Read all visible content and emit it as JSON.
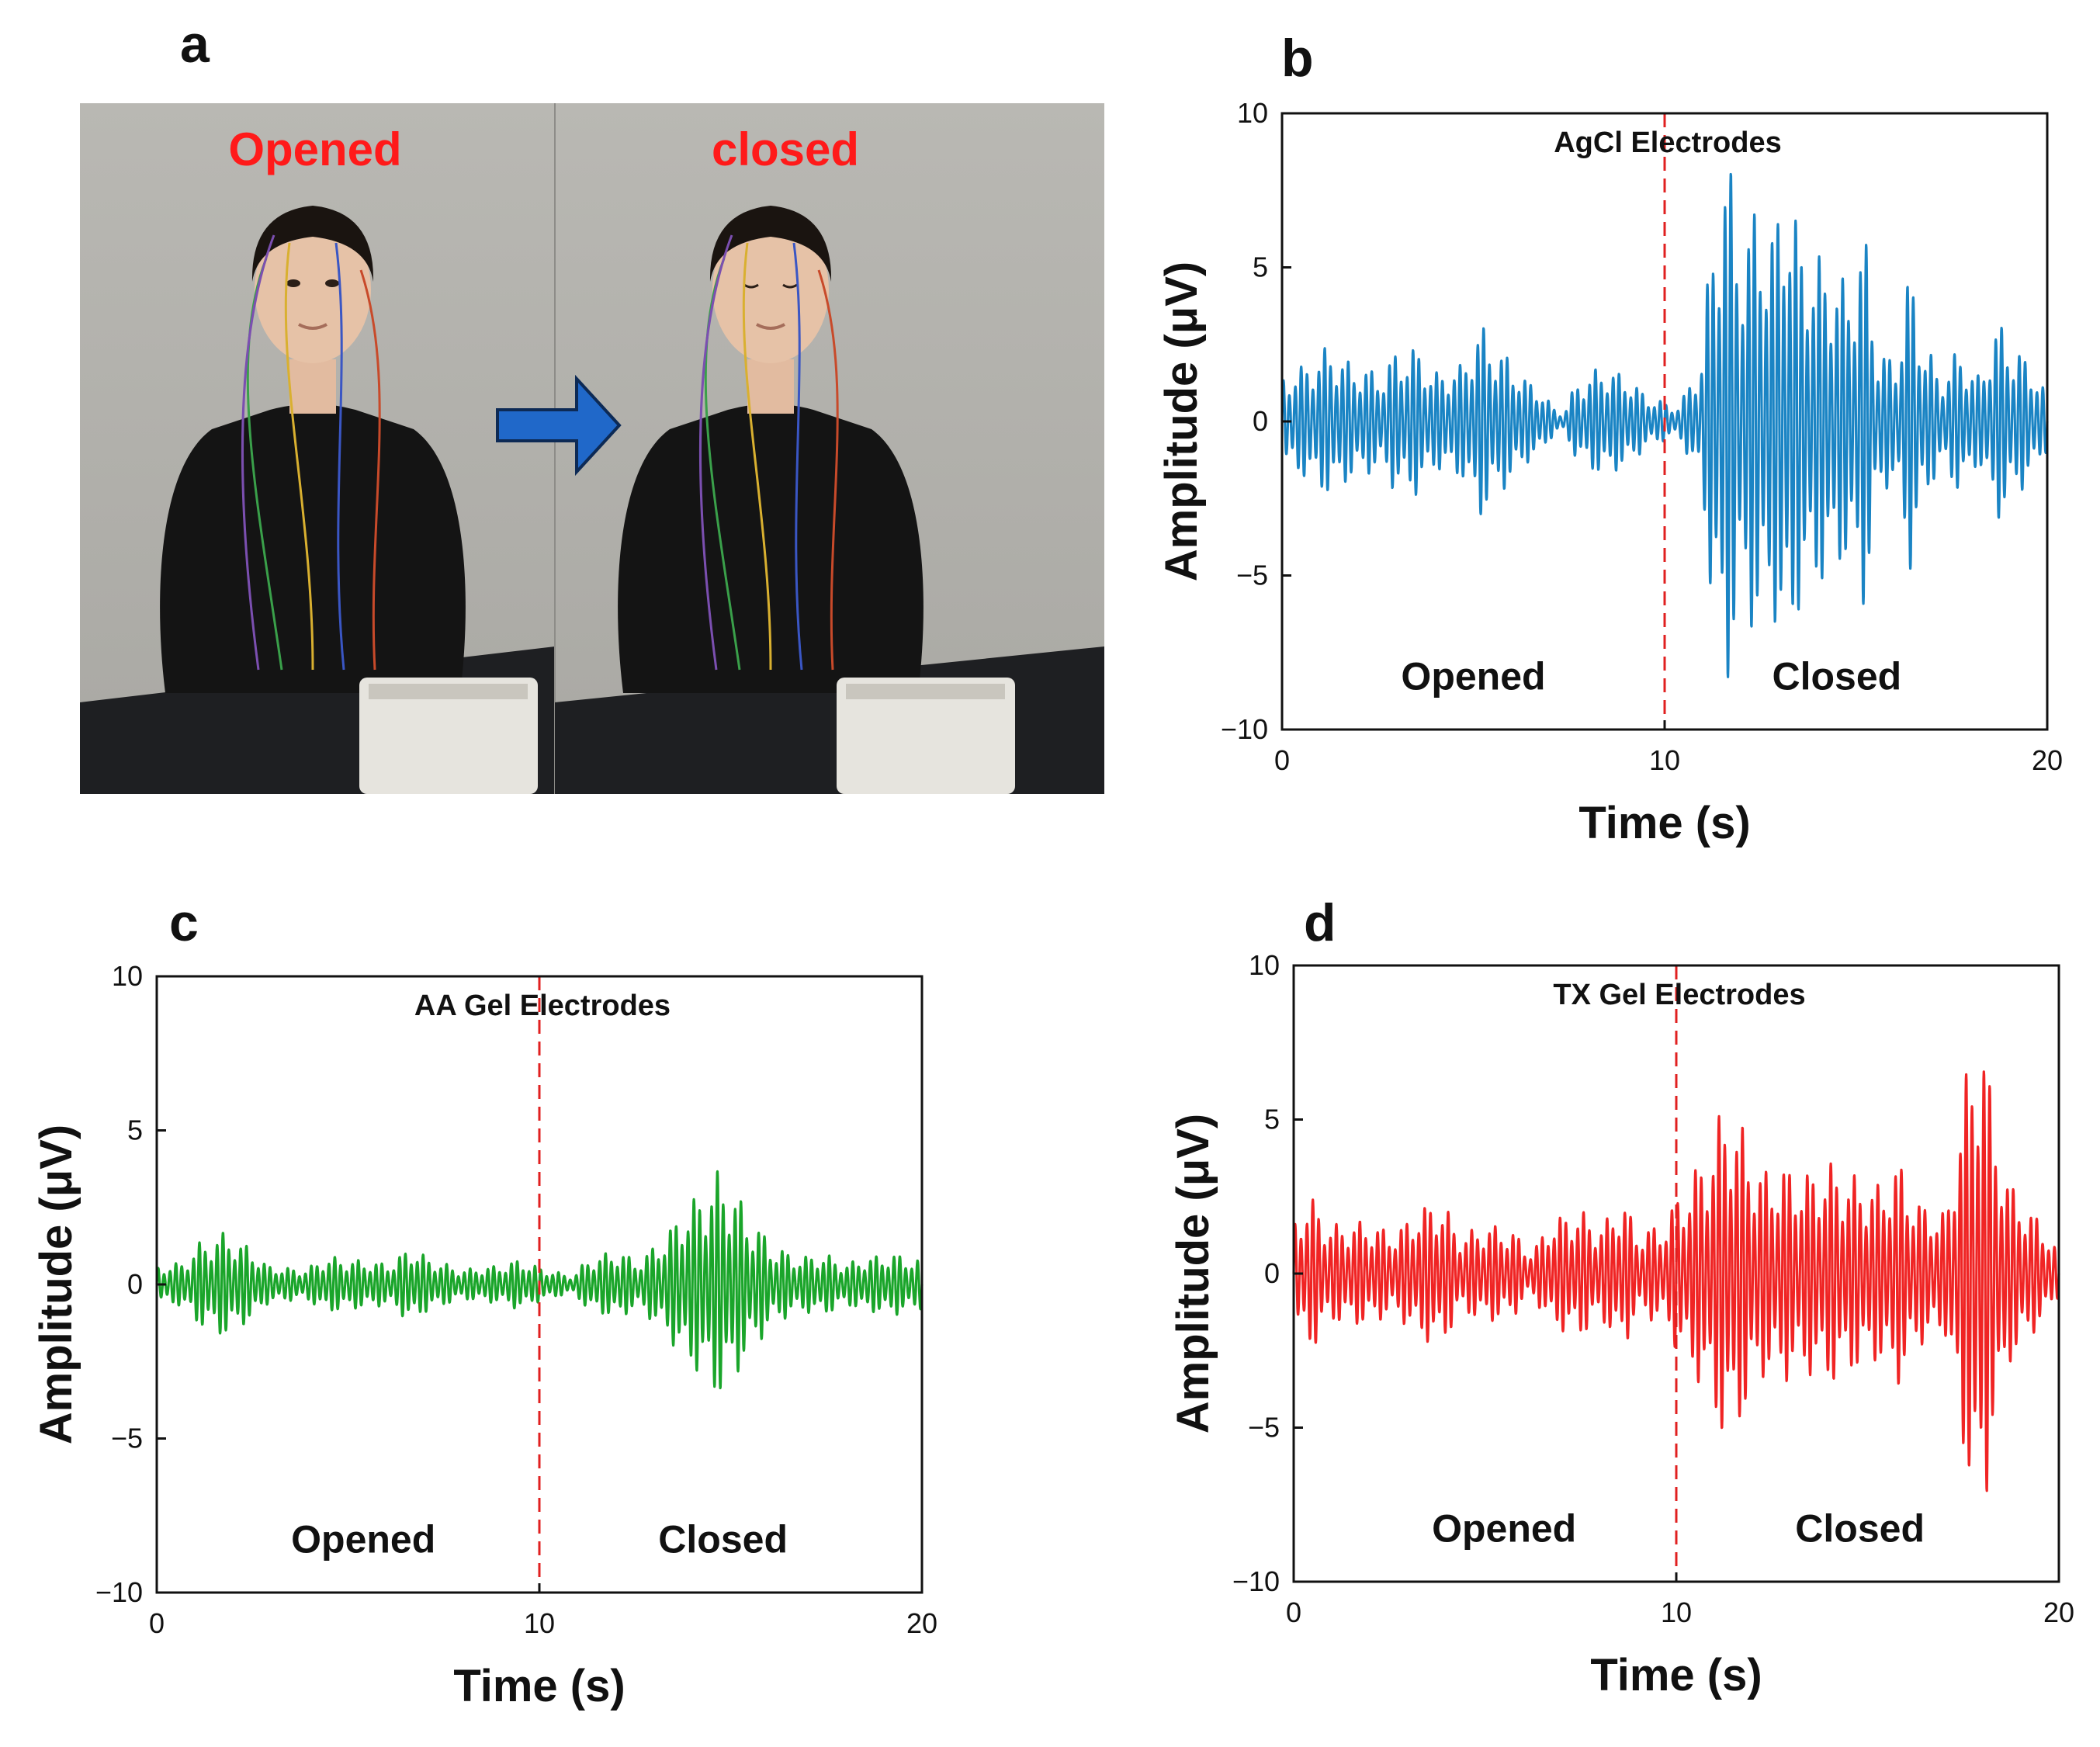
{
  "panels": {
    "a": {
      "letter": "a",
      "labels": {
        "left": "Opened",
        "right": "closed"
      }
    },
    "b": {
      "letter": "b"
    },
    "c": {
      "letter": "c"
    },
    "d": {
      "letter": "d"
    }
  },
  "chart_data": [
    {
      "id": "b",
      "type": "line",
      "title": "AgCl Electrodes",
      "xlabel": "Time (s)",
      "ylabel": "Amplitude (μV)",
      "xlim": [
        0,
        20
      ],
      "ylim": [
        -10,
        10
      ],
      "xticks": [
        0,
        10,
        20
      ],
      "yticks": [
        10,
        5,
        0,
        -5,
        -10
      ],
      "ytick_labels": [
        "10",
        "5",
        "0",
        "−5",
        "−10"
      ],
      "grid": false,
      "divider_x": 10,
      "regions": [
        {
          "label": "Opened",
          "x": 5
        },
        {
          "label": "Closed",
          "x": 14.5
        }
      ],
      "series": [
        {
          "color": "#1a84c4",
          "oscillation_hz": 6.5,
          "envelope": [
            [
              0,
              1.5
            ],
            [
              0.5,
              1.8
            ],
            [
              1.2,
              2.4
            ],
            [
              2,
              1.8
            ],
            [
              2.6,
              1.6
            ],
            [
              3,
              2.3
            ],
            [
              3.5,
              2.4
            ],
            [
              4,
              1.6
            ],
            [
              4.6,
              1.8
            ],
            [
              5.2,
              3.1
            ],
            [
              5.8,
              2.2
            ],
            [
              6.5,
              1.3
            ],
            [
              7.3,
              0.3
            ],
            [
              7.8,
              1.4
            ],
            [
              8.4,
              1.8
            ],
            [
              9,
              1.5
            ],
            [
              9.6,
              0.8
            ],
            [
              10.3,
              0.5
            ],
            [
              10.9,
              1.8
            ],
            [
              11.3,
              6.5
            ],
            [
              11.6,
              8.8
            ],
            [
              12,
              6.0
            ],
            [
              12.4,
              7.0
            ],
            [
              12.8,
              6.3
            ],
            [
              13.2,
              8.1
            ],
            [
              13.6,
              5.8
            ],
            [
              14,
              5.4
            ],
            [
              14.4,
              5.0
            ],
            [
              14.8,
              4.5
            ],
            [
              15.2,
              6.1
            ],
            [
              15.6,
              2.4
            ],
            [
              16,
              2.0
            ],
            [
              16.4,
              4.8
            ],
            [
              16.8,
              2.6
            ],
            [
              17.2,
              1.5
            ],
            [
              17.7,
              2.3
            ],
            [
              18.2,
              1.5
            ],
            [
              18.7,
              3.2
            ],
            [
              19.2,
              2.4
            ],
            [
              19.6,
              1.8
            ],
            [
              20,
              1.0
            ]
          ]
        }
      ]
    },
    {
      "id": "c",
      "type": "line",
      "title": "AA Gel Electrodes",
      "xlabel": "Time (s)",
      "ylabel": "Amplitude (μV)",
      "xlim": [
        0,
        20
      ],
      "ylim": [
        -10,
        10
      ],
      "xticks": [
        0,
        10,
        20
      ],
      "yticks": [
        10,
        5,
        0,
        -5,
        -10
      ],
      "ytick_labels": [
        "10",
        "5",
        "0",
        "−5",
        "−10"
      ],
      "grid": false,
      "divider_x": 10,
      "regions": [
        {
          "label": "Opened",
          "x": 5.4
        },
        {
          "label": "Closed",
          "x": 14.8
        }
      ],
      "series": [
        {
          "color": "#1aa52a",
          "oscillation_hz": 6.5,
          "envelope": [
            [
              0,
              0.6
            ],
            [
              0.6,
              0.7
            ],
            [
              1.2,
              1.4
            ],
            [
              1.8,
              1.7
            ],
            [
              2.3,
              1.3
            ],
            [
              3,
              0.6
            ],
            [
              3.8,
              0.5
            ],
            [
              4.5,
              0.9
            ],
            [
              5.2,
              0.8
            ],
            [
              6,
              0.7
            ],
            [
              6.7,
              1.2
            ],
            [
              7.2,
              0.8
            ],
            [
              8,
              0.5
            ],
            [
              8.8,
              0.6
            ],
            [
              9.5,
              0.8
            ],
            [
              10.2,
              0.5
            ],
            [
              10.8,
              0.3
            ],
            [
              11.4,
              0.9
            ],
            [
              12,
              1.1
            ],
            [
              12.6,
              0.8
            ],
            [
              13.2,
              1.5
            ],
            [
              13.8,
              2.5
            ],
            [
              14.3,
              3.1
            ],
            [
              14.7,
              3.7
            ],
            [
              15.1,
              3.0
            ],
            [
              15.6,
              2.0
            ],
            [
              16.2,
              1.2
            ],
            [
              16.8,
              0.9
            ],
            [
              17.4,
              1.0
            ],
            [
              18,
              0.7
            ],
            [
              18.6,
              0.9
            ],
            [
              19.2,
              1.0
            ],
            [
              20,
              0.8
            ]
          ]
        }
      ]
    },
    {
      "id": "d",
      "type": "line",
      "title": "TX Gel Electrodes",
      "xlabel": "Time (s)",
      "ylabel": "Amplitude (μV)",
      "xlim": [
        0,
        20
      ],
      "ylim": [
        -10,
        10
      ],
      "xticks": [
        0,
        10,
        20
      ],
      "yticks": [
        10,
        5,
        0,
        -5,
        -10
      ],
      "ytick_labels": [
        "10",
        "5",
        "0",
        "−5",
        "−10"
      ],
      "grid": false,
      "divider_x": 10,
      "regions": [
        {
          "label": "Opened",
          "x": 5.5
        },
        {
          "label": "Closed",
          "x": 14.8
        }
      ],
      "series": [
        {
          "color": "#f02424",
          "oscillation_hz": 6.5,
          "envelope": [
            [
              0,
              1.8
            ],
            [
              0.4,
              2.5
            ],
            [
              1,
              1.6
            ],
            [
              1.8,
              1.7
            ],
            [
              2.6,
              1.4
            ],
            [
              3.4,
              2.2
            ],
            [
              3.8,
              2.4
            ],
            [
              4.4,
              1.3
            ],
            [
              5,
              1.6
            ],
            [
              5.6,
              1.5
            ],
            [
              6.2,
              0.8
            ],
            [
              6.8,
              1.8
            ],
            [
              7.4,
              2.1
            ],
            [
              8,
              1.6
            ],
            [
              8.6,
              2.4
            ],
            [
              9,
              1.4
            ],
            [
              9.6,
              1.6
            ],
            [
              10.2,
              2.8
            ],
            [
              10.8,
              4.0
            ],
            [
              11.3,
              5.6
            ],
            [
              11.7,
              4.8
            ],
            [
              12.2,
              3.4
            ],
            [
              12.8,
              3.5
            ],
            [
              13.4,
              3.3
            ],
            [
              14,
              3.6
            ],
            [
              14.6,
              3.2
            ],
            [
              15.2,
              2.9
            ],
            [
              15.8,
              3.6
            ],
            [
              16.4,
              2.3
            ],
            [
              17,
              2.0
            ],
            [
              17.6,
              6.5
            ],
            [
              18,
              8.7
            ],
            [
              18.3,
              5.0
            ],
            [
              18.8,
              2.8
            ],
            [
              19.4,
              1.9
            ],
            [
              20,
              0.8
            ]
          ]
        }
      ]
    }
  ]
}
